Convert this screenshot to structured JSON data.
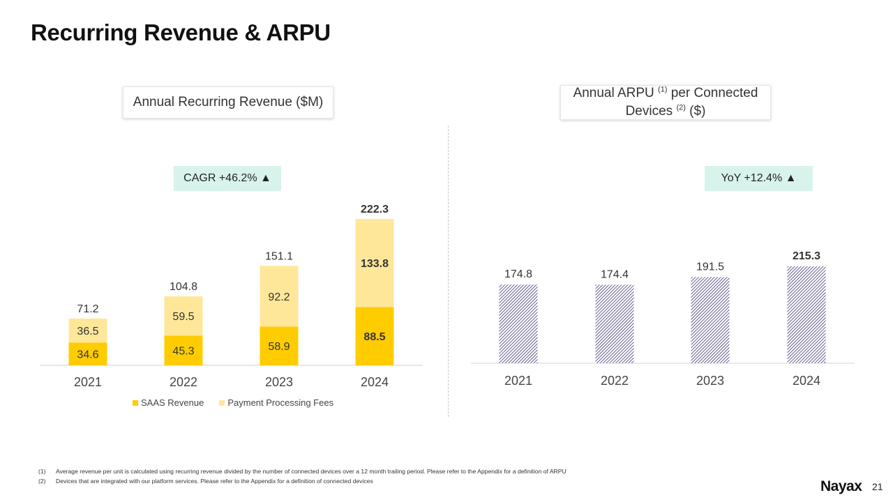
{
  "page": {
    "title": "Recurring Revenue & ARPU",
    "page_number": "21",
    "logo_text": "Nayax"
  },
  "left_chart": {
    "title": "Annual Recurring Revenue ($M)",
    "badge": "CAGR +46.2% ▲"
  },
  "right_chart": {
    "title_line1_a": "Annual ARPU",
    "title_line1_sup": "(1)",
    "title_line1_b": "per Connected",
    "title_line2_a": "Devices",
    "title_line2_sup": "(2)",
    "title_line2_b": "($)",
    "badge": "YoY +12.4% ▲"
  },
  "footnotes": [
    {
      "num": "(1)",
      "text": "Average revenue per unit is calculated using recurring revenue divided by the number of connected devices over a 12 month trailing period. Please refer to the Appendix for a definition of ARPU"
    },
    {
      "num": "(2)",
      "text": "Devices that are integrated with our platform services. Please refer to the Appendix for a definition of connected devices"
    }
  ],
  "colors": {
    "saas": "#ffcc00",
    "payment": "#ffe799",
    "arpu_hatch": "#4b3f78",
    "axis": "#d0d0d0"
  },
  "chart_data": [
    {
      "type": "bar",
      "stacked": true,
      "title": "Annual Recurring Revenue ($M)",
      "categories": [
        "2021",
        "2022",
        "2023",
        "2024"
      ],
      "series": [
        {
          "name": "SAAS Revenue",
          "values": [
            34.6,
            45.3,
            58.9,
            88.5
          ]
        },
        {
          "name": "Payment Processing Fees",
          "values": [
            36.5,
            59.5,
            92.2,
            133.8
          ]
        }
      ],
      "totals": [
        "71.2",
        "104.8",
        "151.1",
        "222.3"
      ],
      "ylim": [
        0,
        222.3
      ],
      "legend": "bottom",
      "grid": false
    },
    {
      "type": "bar",
      "title": "Annual ARPU (1) per Connected Devices (2) ($)",
      "categories": [
        "2021",
        "2022",
        "2023",
        "2024"
      ],
      "values": [
        174.8,
        174.4,
        191.5,
        215.3
      ],
      "ylim": [
        0,
        215.3
      ],
      "legend": "none",
      "grid": false
    }
  ]
}
